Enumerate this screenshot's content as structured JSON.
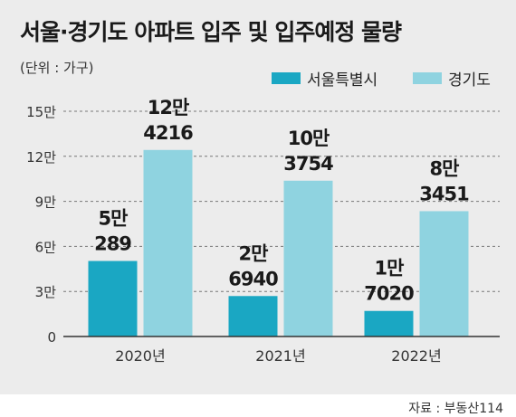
{
  "chart_data": {
    "type": "bar",
    "title": "서울·경기도 아파트 입주 및 입주예정 물량",
    "unit_label": "(단위 : 가구)",
    "categories": [
      "2020년",
      "2021년",
      "2022년"
    ],
    "series": [
      {
        "name": "서울특별시",
        "color": "#1aa7c3",
        "values": [
          50289,
          26940,
          17020
        ],
        "labels": [
          [
            "5만",
            "289"
          ],
          [
            "2만",
            "6940"
          ],
          [
            "1만",
            "7020"
          ]
        ]
      },
      {
        "name": "경기도",
        "color": "#8fd3e0",
        "values": [
          124216,
          103754,
          83451
        ],
        "labels": [
          [
            "12만",
            "4216"
          ],
          [
            "10만",
            "3754"
          ],
          [
            "8만",
            "3451"
          ]
        ]
      }
    ],
    "yticks": [
      {
        "value": 0,
        "label": "0"
      },
      {
        "value": 30000,
        "label": "3만"
      },
      {
        "value": 60000,
        "label": "6만"
      },
      {
        "value": 90000,
        "label": "9만"
      },
      {
        "value": 120000,
        "label": "12만"
      },
      {
        "value": 150000,
        "label": "15만"
      }
    ],
    "ylim": [
      0,
      150000
    ],
    "grid": true,
    "legend": "top-right"
  },
  "source": "자료 : 부동산114"
}
